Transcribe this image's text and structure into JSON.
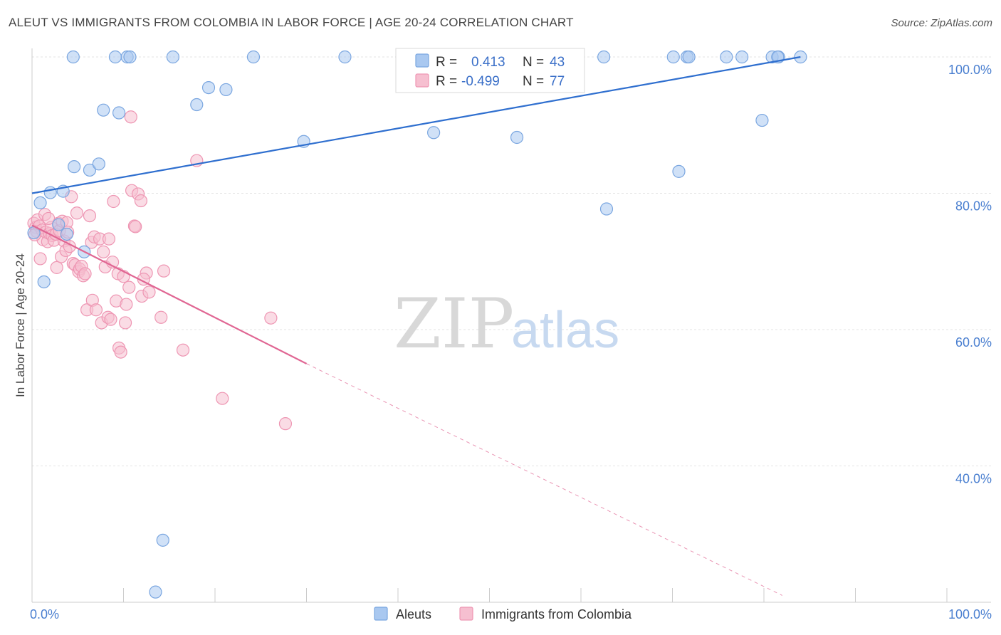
{
  "title": "ALEUT VS IMMIGRANTS FROM COLOMBIA IN LABOR FORCE | AGE 20-24 CORRELATION CHART",
  "source": "Source: ZipAtlas.com",
  "watermark": {
    "zip": "ZIP",
    "atlas": "atlas"
  },
  "colors": {
    "blue_fill": "#a9c8f0",
    "blue_stroke": "#7aa6e0",
    "blue_line": "#2f6fcf",
    "pink_fill": "#f6bfd0",
    "pink_stroke": "#ee96b3",
    "pink_line": "#e06693",
    "tick_text": "#4a7fd0",
    "grid": "#e3e3e3"
  },
  "legend": {
    "r_label": "R =",
    "n_label": "N =",
    "rows": [
      {
        "r": "0.413",
        "n": "43"
      },
      {
        "r": "-0.499",
        "n": "77"
      }
    ]
  },
  "chart_data": {
    "type": "scatter",
    "xlabel": "",
    "ylabel": "In Labor Force | Age 20-24",
    "xlim": [
      0,
      100
    ],
    "ylim": [
      20,
      102
    ],
    "x_tick_labels": [
      "0.0%",
      "100.0%"
    ],
    "y_ticks": [
      40,
      60,
      80,
      100
    ],
    "y_tick_labels": [
      "40.0%",
      "60.0%",
      "80.0%",
      "100.0%"
    ],
    "grid": true,
    "legend_position": "top-center",
    "series": [
      {
        "name": "Aleuts",
        "r": 0.413,
        "n": 43,
        "trend": {
          "x": [
            0,
            84
          ],
          "y": [
            80.0,
            100.0
          ],
          "dashed_to": null
        },
        "points": [
          {
            "x": 0.2,
            "y": 74.2
          },
          {
            "x": 0.9,
            "y": 78.6
          },
          {
            "x": 1.3,
            "y": 67.0
          },
          {
            "x": 2.0,
            "y": 80.1
          },
          {
            "x": 2.9,
            "y": 75.4
          },
          {
            "x": 3.4,
            "y": 80.3
          },
          {
            "x": 3.8,
            "y": 74.0
          },
          {
            "x": 4.6,
            "y": 83.9
          },
          {
            "x": 4.5,
            "y": 100.0
          },
          {
            "x": 5.7,
            "y": 71.4
          },
          {
            "x": 6.3,
            "y": 83.4
          },
          {
            "x": 7.3,
            "y": 84.3
          },
          {
            "x": 7.8,
            "y": 92.2
          },
          {
            "x": 9.1,
            "y": 100.0
          },
          {
            "x": 9.5,
            "y": 91.8
          },
          {
            "x": 10.4,
            "y": 100.0
          },
          {
            "x": 10.7,
            "y": 100.0
          },
          {
            "x": 13.5,
            "y": 21.5
          },
          {
            "x": 14.3,
            "y": 29.1
          },
          {
            "x": 15.4,
            "y": 100.0
          },
          {
            "x": 18.0,
            "y": 93.0
          },
          {
            "x": 19.3,
            "y": 95.5
          },
          {
            "x": 21.2,
            "y": 95.2
          },
          {
            "x": 24.2,
            "y": 100.0
          },
          {
            "x": 29.7,
            "y": 87.6
          },
          {
            "x": 34.2,
            "y": 100.0
          },
          {
            "x": 43.9,
            "y": 88.9
          },
          {
            "x": 47.0,
            "y": 100.0
          },
          {
            "x": 53.0,
            "y": 88.2
          },
          {
            "x": 55.0,
            "y": 100.0
          },
          {
            "x": 62.5,
            "y": 100.0
          },
          {
            "x": 62.8,
            "y": 77.7
          },
          {
            "x": 70.1,
            "y": 100.0
          },
          {
            "x": 70.7,
            "y": 83.2
          },
          {
            "x": 71.6,
            "y": 100.0
          },
          {
            "x": 71.8,
            "y": 100.0
          },
          {
            "x": 75.9,
            "y": 100.0
          },
          {
            "x": 77.6,
            "y": 100.0
          },
          {
            "x": 79.8,
            "y": 90.7
          },
          {
            "x": 80.9,
            "y": 100.0
          },
          {
            "x": 81.6,
            "y": 100.0
          },
          {
            "x": 84.0,
            "y": 100.0
          },
          {
            "x": 81.5,
            "y": 100.0
          }
        ]
      },
      {
        "name": "Immigrants from Colombia",
        "r": -0.499,
        "n": 77,
        "trend": {
          "x": [
            0,
            30
          ],
          "y": [
            75.3,
            55.0
          ],
          "dashed_to": {
            "x": 82,
            "y": 21.0
          }
        },
        "points": [
          {
            "x": 0.2,
            "y": 75.6
          },
          {
            "x": 0.4,
            "y": 75.0
          },
          {
            "x": 0.5,
            "y": 74.4
          },
          {
            "x": 0.6,
            "y": 76.1
          },
          {
            "x": 0.8,
            "y": 75.2
          },
          {
            "x": 0.9,
            "y": 70.4
          },
          {
            "x": 1.1,
            "y": 74.6
          },
          {
            "x": 1.2,
            "y": 73.2
          },
          {
            "x": 1.4,
            "y": 76.9
          },
          {
            "x": 1.5,
            "y": 74.3
          },
          {
            "x": 1.7,
            "y": 72.9
          },
          {
            "x": 1.9,
            "y": 74.1
          },
          {
            "x": 2.1,
            "y": 75.0
          },
          {
            "x": 2.2,
            "y": 73.8
          },
          {
            "x": 2.4,
            "y": 73.1
          },
          {
            "x": 2.6,
            "y": 74.0
          },
          {
            "x": 2.7,
            "y": 69.1
          },
          {
            "x": 2.9,
            "y": 75.6
          },
          {
            "x": 3.0,
            "y": 74.5
          },
          {
            "x": 3.2,
            "y": 70.7
          },
          {
            "x": 3.3,
            "y": 75.9
          },
          {
            "x": 3.5,
            "y": 73.0
          },
          {
            "x": 3.7,
            "y": 71.6
          },
          {
            "x": 3.8,
            "y": 75.7
          },
          {
            "x": 3.9,
            "y": 74.3
          },
          {
            "x": 4.1,
            "y": 72.2
          },
          {
            "x": 4.3,
            "y": 79.5
          },
          {
            "x": 4.5,
            "y": 69.7
          },
          {
            "x": 4.7,
            "y": 69.5
          },
          {
            "x": 4.9,
            "y": 77.1
          },
          {
            "x": 5.1,
            "y": 68.5
          },
          {
            "x": 5.2,
            "y": 68.9
          },
          {
            "x": 5.4,
            "y": 69.3
          },
          {
            "x": 5.6,
            "y": 67.9
          },
          {
            "x": 5.8,
            "y": 68.2
          },
          {
            "x": 6.0,
            "y": 62.9
          },
          {
            "x": 6.3,
            "y": 76.7
          },
          {
            "x": 6.5,
            "y": 72.8
          },
          {
            "x": 6.6,
            "y": 64.3
          },
          {
            "x": 6.8,
            "y": 73.6
          },
          {
            "x": 7.0,
            "y": 62.9
          },
          {
            "x": 7.4,
            "y": 73.3
          },
          {
            "x": 7.6,
            "y": 61.0
          },
          {
            "x": 7.8,
            "y": 71.4
          },
          {
            "x": 8.0,
            "y": 69.2
          },
          {
            "x": 8.3,
            "y": 61.8
          },
          {
            "x": 8.4,
            "y": 73.3
          },
          {
            "x": 8.6,
            "y": 61.5
          },
          {
            "x": 8.8,
            "y": 69.9
          },
          {
            "x": 8.9,
            "y": 78.8
          },
          {
            "x": 9.2,
            "y": 64.2
          },
          {
            "x": 9.4,
            "y": 68.2
          },
          {
            "x": 9.5,
            "y": 57.3
          },
          {
            "x": 9.7,
            "y": 56.7
          },
          {
            "x": 10.0,
            "y": 67.8
          },
          {
            "x": 10.2,
            "y": 61.0
          },
          {
            "x": 10.3,
            "y": 63.7
          },
          {
            "x": 10.6,
            "y": 66.2
          },
          {
            "x": 10.9,
            "y": 80.4
          },
          {
            "x": 10.8,
            "y": 91.2
          },
          {
            "x": 11.2,
            "y": 75.2
          },
          {
            "x": 11.3,
            "y": 75.1
          },
          {
            "x": 11.6,
            "y": 79.9
          },
          {
            "x": 11.9,
            "y": 78.9
          },
          {
            "x": 12.5,
            "y": 68.3
          },
          {
            "x": 12.2,
            "y": 67.4
          },
          {
            "x": 12.0,
            "y": 64.9
          },
          {
            "x": 12.8,
            "y": 65.5
          },
          {
            "x": 14.4,
            "y": 68.6
          },
          {
            "x": 14.1,
            "y": 61.8
          },
          {
            "x": 16.5,
            "y": 57.0
          },
          {
            "x": 18.0,
            "y": 84.8
          },
          {
            "x": 20.8,
            "y": 49.9
          },
          {
            "x": 26.1,
            "y": 61.7
          },
          {
            "x": 27.7,
            "y": 46.2
          },
          {
            "x": 1.8,
            "y": 76.3
          },
          {
            "x": 0.3,
            "y": 73.9
          }
        ]
      }
    ]
  }
}
